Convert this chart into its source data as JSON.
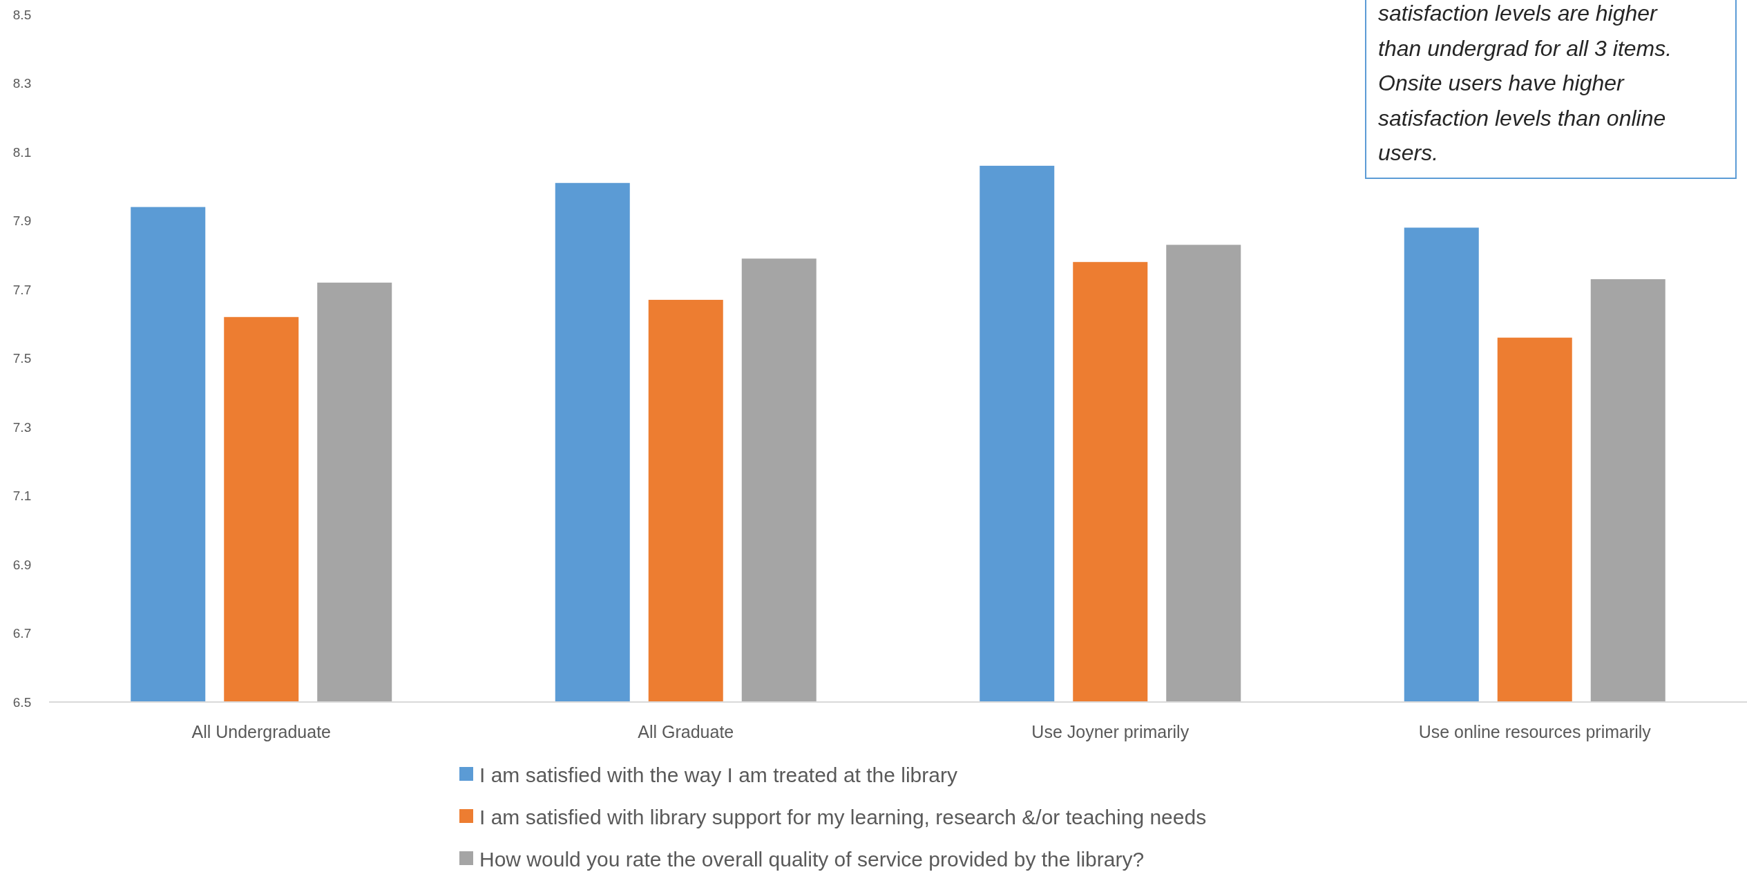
{
  "chart_data": {
    "type": "bar",
    "categories": [
      "All Undergraduate",
      "All Graduate",
      "Use Joyner primarily",
      "Use online resources primarily"
    ],
    "series": [
      {
        "name": "I am satisfied with the way I am treated at the library",
        "color": "#5b9bd5",
        "values": [
          7.94,
          8.01,
          8.06,
          7.88
        ]
      },
      {
        "name": "I am satisfied with library support for my learning, research &/or teaching needs",
        "color": "#ed7d31",
        "values": [
          7.62,
          7.67,
          7.78,
          7.56
        ]
      },
      {
        "name": "How would you rate the overall quality of service provided by the library?",
        "color": "#a5a5a5",
        "values": [
          7.72,
          7.79,
          7.83,
          7.73
        ]
      }
    ],
    "ylim": [
      6.5,
      8.5
    ],
    "yticks": [
      {
        "value": 6.5,
        "label": "6.5"
      },
      {
        "value": 6.7,
        "label": "6.7"
      },
      {
        "value": 6.9,
        "label": "6.9"
      },
      {
        "value": 7.1,
        "label": "7.1"
      },
      {
        "value": 7.3,
        "label": "7.3"
      },
      {
        "value": 7.5,
        "label": "7.5"
      },
      {
        "value": 7.7,
        "label": "7.7"
      },
      {
        "value": 7.9,
        "label": "7.9"
      },
      {
        "value": 8.1,
        "label": "8.1"
      },
      {
        "value": 8.3,
        "label": "8.3"
      },
      {
        "value": 8.5,
        "label": "8.5"
      }
    ],
    "grid": false,
    "legend": "bottom",
    "annotations": [
      "satisfaction levels are higher than undergrad for all 3 items. Onsite users have higher satisfaction levels than online users."
    ]
  }
}
